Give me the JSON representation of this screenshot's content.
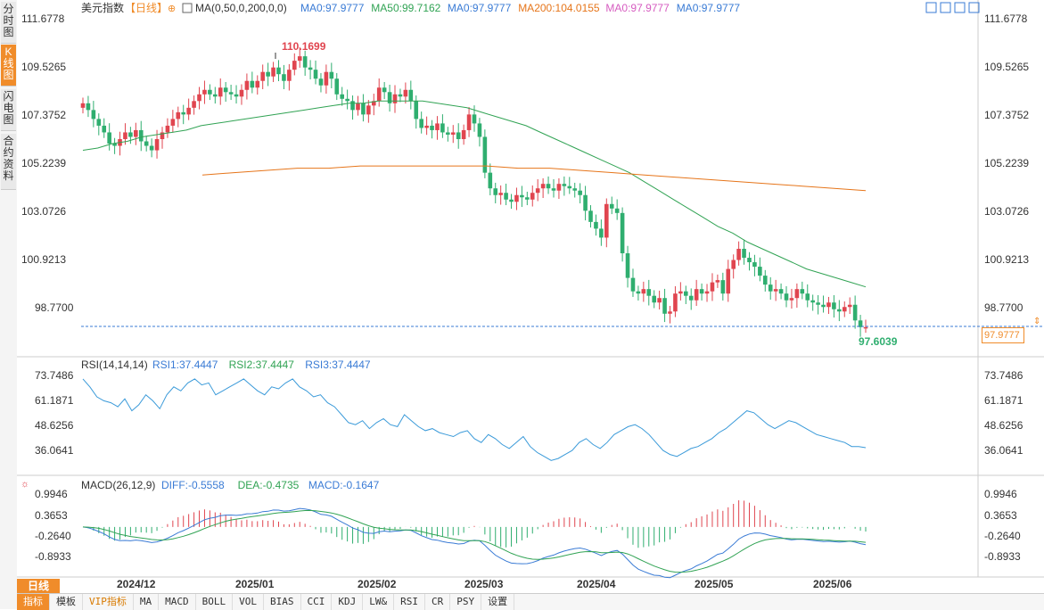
{
  "side_tabs": [
    {
      "label": "分时图",
      "active": false
    },
    {
      "label": "K线图",
      "active": true
    },
    {
      "label": "闪电图",
      "active": false
    },
    {
      "label": "合约资料",
      "active": false
    }
  ],
  "header": {
    "symbol": "美元指数",
    "period_tag": "【日线】",
    "ma_params": "MA(0,50,0,200,0,0)",
    "ma_values": [
      {
        "text": "MA0:97.9777",
        "color": "#3a7bd5"
      },
      {
        "text": "MA50:99.7162",
        "color": "#31a354"
      },
      {
        "text": "MA0:97.9777",
        "color": "#3a7bd5"
      },
      {
        "text": "MA200:104.0155",
        "color": "#e6751a"
      },
      {
        "text": "MA0:97.9777",
        "color": "#d65cc0"
      },
      {
        "text": "MA0:97.9777",
        "color": "#3a7bd5"
      }
    ]
  },
  "price_axis": [
    "111.6778",
    "109.5265",
    "107.3752",
    "105.2239",
    "103.0726",
    "100.9213",
    "98.7700"
  ],
  "last_price": "97.9777",
  "high_label": "110.1699",
  "low_label": "97.6039",
  "rsi": {
    "title": "RSI(14,14,14)",
    "values": [
      {
        "text": "RSI1:37.4447",
        "color": "#3a7bd5"
      },
      {
        "text": "RSI2:37.4447",
        "color": "#31a354"
      },
      {
        "text": "RSI3:37.4447",
        "color": "#3a7bd5"
      }
    ],
    "axis": [
      "73.7486",
      "61.1871",
      "48.6256",
      "36.0641"
    ]
  },
  "macd": {
    "title": "MACD(26,12,9)",
    "values": [
      {
        "text": "DIFF:-0.5558",
        "color": "#3a7bd5"
      },
      {
        "text": "DEA:-0.4735",
        "color": "#31a354"
      },
      {
        "text": "MACD:-0.1647",
        "color": "#3a7bd5"
      }
    ],
    "axis": [
      "0.9946",
      "0.3653",
      "-0.2640",
      "-0.8933"
    ]
  },
  "date_axis": [
    "2024/12",
    "2025/01",
    "2025/02",
    "2025/03",
    "2025/04",
    "2025/05",
    "2025/06"
  ],
  "period_tab": "日线",
  "bottom_tabs": [
    {
      "label": "指标",
      "active": true
    },
    {
      "label": "模板"
    },
    {
      "label": "VIP指标",
      "vip": true
    },
    {
      "label": "MA"
    },
    {
      "label": "MACD"
    },
    {
      "label": "BOLL"
    },
    {
      "label": "VOL"
    },
    {
      "label": "BIAS"
    },
    {
      "label": "CCI"
    },
    {
      "label": "KDJ"
    },
    {
      "label": "LW&"
    },
    {
      "label": "RSI"
    },
    {
      "label": "CR"
    },
    {
      "label": "PSY"
    },
    {
      "label": "设置"
    }
  ],
  "colors": {
    "up": "#e0454f",
    "down": "#2fae6f",
    "accent": "#f08c2a",
    "ma50": "#31a354",
    "ma200": "#e6751a"
  },
  "chart_data": {
    "type": "candlestick",
    "title": "美元指数",
    "x_ticks": [
      "2024/12",
      "2025/01",
      "2025/02",
      "2025/03",
      "2025/04",
      "2025/05",
      "2025/06"
    ],
    "ylim": [
      97.0,
      112.0
    ],
    "closes": [
      107.9,
      107.6,
      107.2,
      106.9,
      106.6,
      106.1,
      106.0,
      106.3,
      106.6,
      106.4,
      106.7,
      106.2,
      106.0,
      105.8,
      106.3,
      106.6,
      106.9,
      107.2,
      107.5,
      107.4,
      107.7,
      108.0,
      108.3,
      108.5,
      108.3,
      108.2,
      108.6,
      108.4,
      108.3,
      108.2,
      108.5,
      108.9,
      108.6,
      108.9,
      109.3,
      109.1,
      109.5,
      109.2,
      108.9,
      109.4,
      109.8,
      110.0,
      109.5,
      109.4,
      109.0,
      108.7,
      109.3,
      109.0,
      108.3,
      108.1,
      108.0,
      107.6,
      107.9,
      107.4,
      107.8,
      108.0,
      108.6,
      108.4,
      107.9,
      108.3,
      108.2,
      108.5,
      108.0,
      107.2,
      106.8,
      106.9,
      106.7,
      107.0,
      106.6,
      106.5,
      106.6,
      106.3,
      106.7,
      107.4,
      107.0,
      106.4,
      104.8,
      104.1,
      103.8,
      103.9,
      103.6,
      103.5,
      103.8,
      103.7,
      103.6,
      103.9,
      104.1,
      104.3,
      104.1,
      104.0,
      104.3,
      104.2,
      104.1,
      104.0,
      103.8,
      103.1,
      102.6,
      102.3,
      101.9,
      103.4,
      103.2,
      103.0,
      101.2,
      100.1,
      99.5,
      99.4,
      99.6,
      99.3,
      99.0,
      99.2,
      98.5,
      98.6,
      99.4,
      99.5,
      99.3,
      99.1,
      99.6,
      99.4,
      99.5,
      99.9,
      100.0,
      99.4,
      100.5,
      100.9,
      101.4,
      101.0,
      100.8,
      100.6,
      100.2,
      99.8,
      99.5,
      99.6,
      99.4,
      99.1,
      99.2,
      99.6,
      99.4,
      99.1,
      99.0,
      98.9,
      98.8,
      99.0,
      98.7,
      98.6,
      98.8,
      98.9,
      98.2,
      97.9,
      97.9
    ],
    "ma50": [
      105.8,
      105.9,
      106.1,
      106.2,
      106.4,
      106.5,
      106.6,
      106.7,
      106.9,
      107.0,
      107.1,
      107.2,
      107.3,
      107.4,
      107.5,
      107.6,
      107.7,
      107.8,
      107.9,
      107.9,
      108.0,
      108.0,
      108.0,
      108.0,
      107.9,
      107.8,
      107.7,
      107.5,
      107.3,
      107.1,
      106.9,
      106.6,
      106.3,
      106.0,
      105.7,
      105.4,
      105.1,
      104.8,
      104.4,
      104.0,
      103.6,
      103.2,
      102.8,
      102.4,
      102.1,
      101.7,
      101.4,
      101.1,
      100.8,
      100.5,
      100.3,
      100.1,
      99.9,
      99.7
    ],
    "ma200": [
      104.7,
      104.8,
      104.9,
      105.0,
      105.0,
      105.1,
      105.1,
      105.1,
      105.1,
      105.1,
      105.0,
      105.0,
      104.9,
      104.8,
      104.7,
      104.6,
      104.5,
      104.4,
      104.3,
      104.2,
      104.1,
      104.0
    ],
    "rsi": [
      72,
      68,
      63,
      61,
      60,
      58,
      62,
      56,
      59,
      64,
      61,
      57,
      64,
      68,
      66,
      70,
      72,
      69,
      70,
      64,
      66,
      68,
      70,
      72,
      69,
      66,
      64,
      68,
      67,
      70,
      72,
      68,
      66,
      63,
      64,
      60,
      58,
      54,
      50,
      49,
      51,
      47,
      50,
      52,
      49,
      48,
      54,
      51,
      48,
      46,
      47,
      45,
      44,
      43,
      45,
      46,
      42,
      40,
      44,
      42,
      39,
      37,
      40,
      43,
      38,
      35,
      33,
      31,
      32,
      34,
      36,
      40,
      42,
      39,
      37,
      40,
      44,
      46,
      48,
      49,
      47,
      44,
      40,
      36,
      34,
      33,
      35,
      37,
      38,
      40,
      42,
      45,
      47,
      50,
      53,
      56,
      55,
      52,
      49,
      47,
      49,
      51,
      50,
      48,
      46,
      44,
      43,
      42,
      41,
      40,
      38,
      38,
      37.4
    ]
  }
}
